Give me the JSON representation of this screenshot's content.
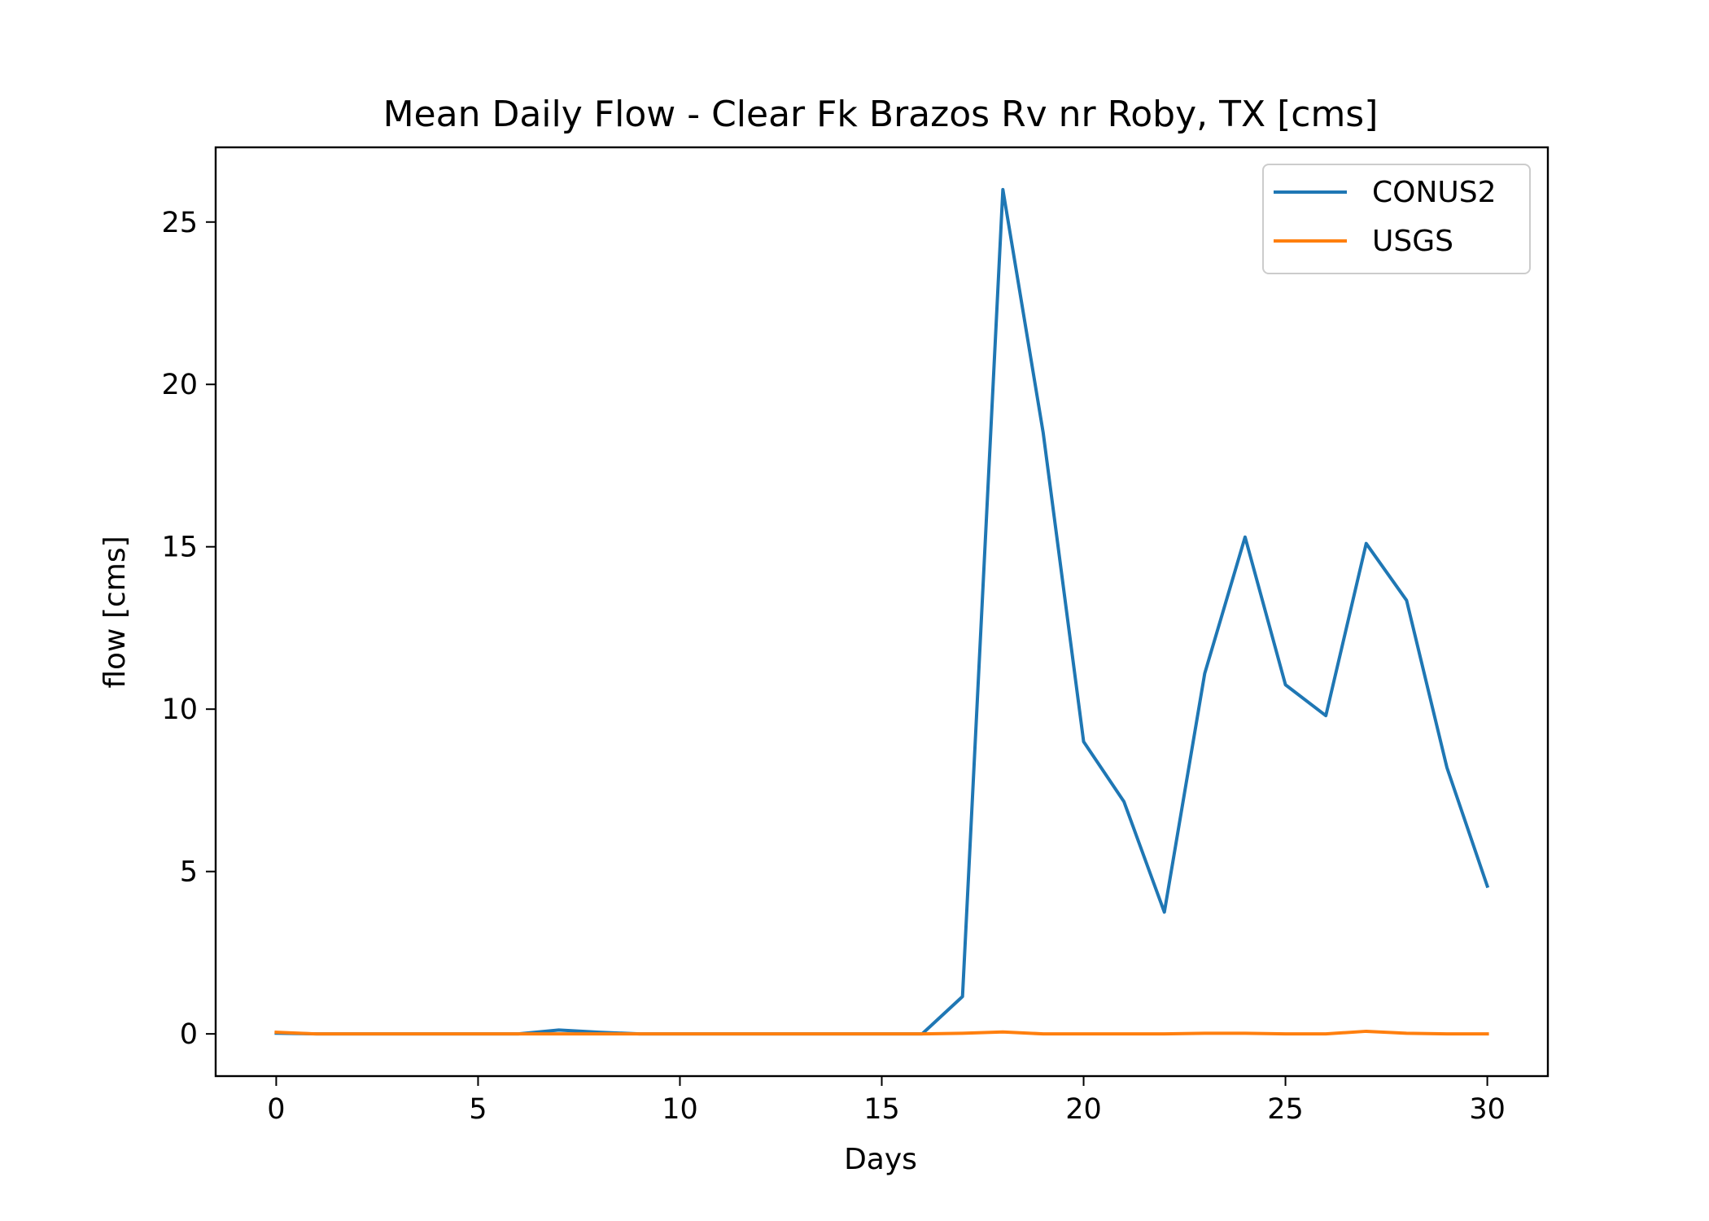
{
  "chart_data": {
    "type": "line",
    "title": "Mean Daily Flow - Clear Fk Brazos Rv nr Roby, TX [cms]",
    "xlabel": "Days",
    "ylabel": "flow [cms]",
    "xlim": [
      -1.5,
      31.5
    ],
    "ylim": [
      -1.3,
      27.3
    ],
    "xticks": [
      0,
      5,
      10,
      15,
      20,
      25,
      30
    ],
    "yticks": [
      0,
      5,
      10,
      15,
      20,
      25
    ],
    "grid": false,
    "legend_position": "upper right",
    "x": [
      0,
      1,
      2,
      3,
      4,
      5,
      6,
      7,
      8,
      9,
      10,
      11,
      12,
      13,
      14,
      15,
      16,
      17,
      18,
      19,
      20,
      21,
      22,
      23,
      24,
      25,
      26,
      27,
      28,
      29,
      30
    ],
    "series": [
      {
        "name": "CONUS2",
        "color": "#1f77b4",
        "values": [
          0.02,
          0.0,
          0.0,
          0.0,
          0.0,
          0.0,
          0.0,
          0.12,
          0.05,
          0.0,
          0.0,
          0.0,
          0.0,
          0.0,
          0.0,
          0.0,
          0.0,
          1.15,
          26.0,
          18.5,
          9.0,
          7.15,
          3.75,
          11.1,
          15.3,
          10.75,
          9.8,
          15.1,
          13.35,
          8.2,
          4.55
        ]
      },
      {
        "name": "USGS",
        "color": "#ff7f0e",
        "values": [
          0.05,
          0.0,
          0.0,
          0.0,
          0.0,
          0.0,
          0.0,
          0.0,
          0.0,
          0.0,
          0.0,
          0.0,
          0.0,
          0.0,
          0.0,
          0.0,
          0.0,
          0.02,
          0.06,
          0.0,
          0.0,
          0.0,
          0.0,
          0.02,
          0.02,
          0.0,
          0.0,
          0.08,
          0.02,
          0.0,
          0.0
        ]
      }
    ]
  }
}
